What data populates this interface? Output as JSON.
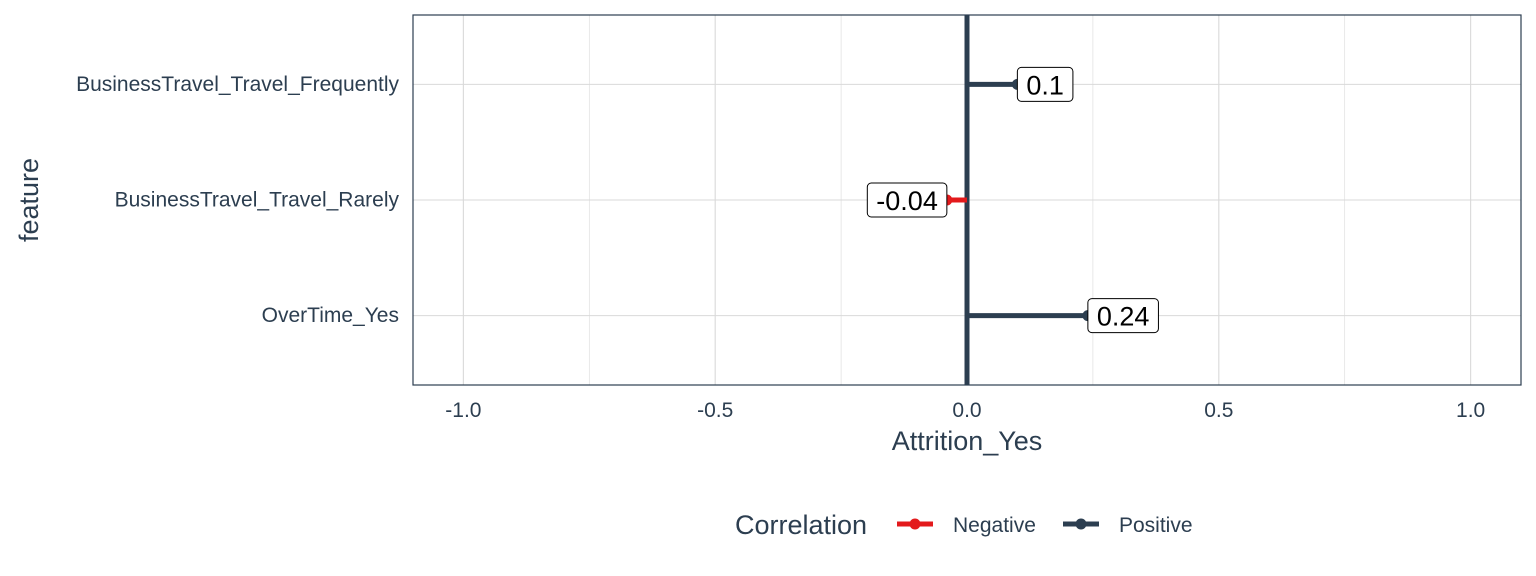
{
  "colors": {
    "negative": "#e31a1c",
    "positive": "#2c3e50",
    "grid": "#d9d9d9",
    "panel_border": "#2c3e50",
    "text": "#2c3e50"
  },
  "chart_data": {
    "type": "lollipop",
    "xlabel": "Attrition_Yes",
    "ylabel": "feature",
    "xlim": [
      -1.1,
      1.1
    ],
    "xticks": [
      -1.0,
      -0.5,
      0.0,
      0.5,
      1.0
    ],
    "xtick_labels": [
      "-1.0",
      "-0.5",
      "0.0",
      "0.5",
      "1.0"
    ],
    "grid": true,
    "categories": [
      "BusinessTravel_Travel_Frequently",
      "BusinessTravel_Travel_Rarely",
      "OverTime_Yes"
    ],
    "values": [
      0.1,
      -0.04,
      0.24
    ],
    "data_labels": [
      "0.1",
      "-0.04",
      "0.24"
    ],
    "correlation": [
      "Positive",
      "Negative",
      "Positive"
    ],
    "legend": {
      "title": "Correlation",
      "position": "bottom",
      "entries": [
        "Negative",
        "Positive"
      ]
    }
  }
}
